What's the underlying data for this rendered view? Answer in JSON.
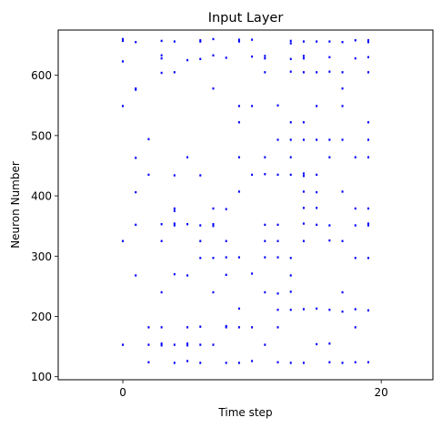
{
  "chart_data": {
    "type": "scatter",
    "title": "Input Layer",
    "xlabel": "Time step",
    "ylabel": "Neuron Number",
    "xlim": [
      -5,
      24
    ],
    "ylim": [
      95,
      675
    ],
    "xticks": [
      0,
      20
    ],
    "yticks": [
      100,
      200,
      300,
      400,
      500,
      600
    ],
    "grid": false,
    "marker_color": "#0000ff",
    "series": [
      {
        "points": [
          [
            0,
            660
          ],
          [
            0,
            657
          ],
          [
            0,
            623
          ],
          [
            0,
            549
          ],
          [
            0,
            325
          ],
          [
            0,
            153
          ],
          [
            1,
            655
          ],
          [
            1,
            578
          ],
          [
            1,
            576
          ],
          [
            1,
            463
          ],
          [
            1,
            406
          ],
          [
            1,
            352
          ],
          [
            1,
            268
          ],
          [
            2,
            494
          ],
          [
            2,
            435
          ],
          [
            2,
            182
          ],
          [
            2,
            153
          ],
          [
            2,
            124
          ],
          [
            3,
            657
          ],
          [
            3,
            633
          ],
          [
            3,
            628
          ],
          [
            3,
            604
          ],
          [
            3,
            353
          ],
          [
            3,
            325
          ],
          [
            3,
            240
          ],
          [
            3,
            182
          ],
          [
            3,
            155
          ],
          [
            3,
            152
          ],
          [
            4,
            656
          ],
          [
            4,
            605
          ],
          [
            4,
            434
          ],
          [
            4,
            379
          ],
          [
            4,
            375
          ],
          [
            4,
            354
          ],
          [
            4,
            351
          ],
          [
            4,
            270
          ],
          [
            4,
            153
          ],
          [
            4,
            123
          ],
          [
            5,
            625
          ],
          [
            5,
            464
          ],
          [
            5,
            353
          ],
          [
            5,
            268
          ],
          [
            5,
            182
          ],
          [
            5,
            155
          ],
          [
            5,
            152
          ],
          [
            5,
            126
          ],
          [
            6,
            658
          ],
          [
            6,
            656
          ],
          [
            6,
            627
          ],
          [
            6,
            434
          ],
          [
            6,
            351
          ],
          [
            6,
            325
          ],
          [
            6,
            297
          ],
          [
            6,
            183
          ],
          [
            6,
            153
          ],
          [
            6,
            123
          ],
          [
            7,
            660
          ],
          [
            7,
            633
          ],
          [
            7,
            578
          ],
          [
            7,
            379
          ],
          [
            7,
            353
          ],
          [
            7,
            350
          ],
          [
            7,
            297
          ],
          [
            7,
            240
          ],
          [
            7,
            153
          ],
          [
            8,
            629
          ],
          [
            8,
            378
          ],
          [
            8,
            325
          ],
          [
            8,
            298
          ],
          [
            8,
            269
          ],
          [
            8,
            184
          ],
          [
            8,
            182
          ],
          [
            8,
            123
          ],
          [
            9,
            659
          ],
          [
            9,
            656
          ],
          [
            9,
            549
          ],
          [
            9,
            522
          ],
          [
            9,
            464
          ],
          [
            9,
            407
          ],
          [
            9,
            298
          ],
          [
            9,
            213
          ],
          [
            9,
            182
          ],
          [
            9,
            123
          ],
          [
            10,
            659
          ],
          [
            10,
            631
          ],
          [
            10,
            549
          ],
          [
            10,
            435
          ],
          [
            10,
            271
          ],
          [
            10,
            182
          ],
          [
            10,
            126
          ],
          [
            11,
            632
          ],
          [
            11,
            628
          ],
          [
            11,
            605
          ],
          [
            11,
            464
          ],
          [
            11,
            436
          ],
          [
            11,
            352
          ],
          [
            11,
            325
          ],
          [
            11,
            298
          ],
          [
            11,
            240
          ],
          [
            11,
            153
          ],
          [
            12,
            550
          ],
          [
            12,
            493
          ],
          [
            12,
            435
          ],
          [
            12,
            352
          ],
          [
            12,
            325
          ],
          [
            12,
            298
          ],
          [
            12,
            238
          ],
          [
            12,
            211
          ],
          [
            12,
            182
          ],
          [
            12,
            124
          ],
          [
            13,
            657
          ],
          [
            13,
            653
          ],
          [
            13,
            627
          ],
          [
            13,
            606
          ],
          [
            13,
            522
          ],
          [
            13,
            493
          ],
          [
            13,
            464
          ],
          [
            13,
            435
          ],
          [
            13,
            297
          ],
          [
            13,
            268
          ],
          [
            13,
            241
          ],
          [
            13,
            211
          ],
          [
            13,
            123
          ],
          [
            14,
            656
          ],
          [
            14,
            632
          ],
          [
            14,
            628
          ],
          [
            14,
            605
          ],
          [
            14,
            522
          ],
          [
            14,
            493
          ],
          [
            14,
            437
          ],
          [
            14,
            433
          ],
          [
            14,
            407
          ],
          [
            14,
            380
          ],
          [
            14,
            354
          ],
          [
            14,
            325
          ],
          [
            14,
            212
          ],
          [
            14,
            123
          ],
          [
            15,
            656
          ],
          [
            15,
            605
          ],
          [
            15,
            549
          ],
          [
            15,
            493
          ],
          [
            15,
            435
          ],
          [
            15,
            406
          ],
          [
            15,
            380
          ],
          [
            15,
            352
          ],
          [
            15,
            213
          ],
          [
            15,
            154
          ],
          [
            16,
            656
          ],
          [
            16,
            630
          ],
          [
            16,
            606
          ],
          [
            16,
            493
          ],
          [
            16,
            464
          ],
          [
            16,
            351
          ],
          [
            16,
            326
          ],
          [
            16,
            211
          ],
          [
            16,
            155
          ],
          [
            16,
            124
          ],
          [
            17,
            655
          ],
          [
            17,
            605
          ],
          [
            17,
            578
          ],
          [
            17,
            549
          ],
          [
            17,
            493
          ],
          [
            17,
            407
          ],
          [
            17,
            325
          ],
          [
            17,
            240
          ],
          [
            17,
            208
          ],
          [
            17,
            123
          ],
          [
            18,
            658
          ],
          [
            18,
            628
          ],
          [
            18,
            464
          ],
          [
            18,
            379
          ],
          [
            18,
            351
          ],
          [
            18,
            297
          ],
          [
            18,
            212
          ],
          [
            18,
            182
          ],
          [
            18,
            124
          ],
          [
            19,
            658
          ],
          [
            19,
            655
          ],
          [
            19,
            630
          ],
          [
            19,
            605
          ],
          [
            19,
            522
          ],
          [
            19,
            493
          ],
          [
            19,
            464
          ],
          [
            19,
            379
          ],
          [
            19,
            354
          ],
          [
            19,
            351
          ],
          [
            19,
            297
          ],
          [
            19,
            210
          ],
          [
            19,
            124
          ]
        ]
      }
    ]
  }
}
